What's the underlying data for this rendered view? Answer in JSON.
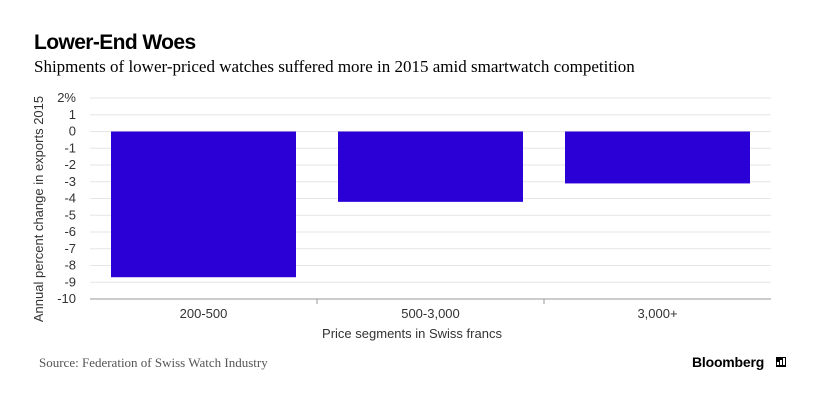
{
  "header": {
    "title": "Lower-End Woes",
    "subtitle": "Shipments of lower-priced watches suffered more in 2015 amid smartwatch competition"
  },
  "footer": {
    "source": "Source: Federation of Swiss Watch Industry",
    "brand": "Bloomberg",
    "brand_icon": "bar-chart-icon"
  },
  "colors": {
    "bar": "#2a00d6",
    "grid": "#e6e6e6",
    "axis": "#999999",
    "text": "#333333"
  },
  "chart_data": {
    "type": "bar",
    "title": "Lower-End Woes",
    "subtitle": "Shipments of lower-priced watches suffered more in 2015 amid smartwatch competition",
    "categories": [
      "200-500",
      "500-3,000",
      "3,000+"
    ],
    "values": [
      -8.7,
      -4.2,
      -3.1
    ],
    "xlabel": "Price segments in Swiss francs",
    "ylabel": "Annual percent change in exports 2015",
    "ylim": [
      -10,
      2
    ],
    "yticks": [
      2,
      1,
      0,
      -1,
      -2,
      -3,
      -4,
      -5,
      -6,
      -7,
      -8,
      -9,
      -10
    ],
    "ytick_labels": [
      "2%",
      "1",
      "0",
      "-1",
      "-2",
      "-3",
      "-4",
      "-5",
      "-6",
      "-7",
      "-8",
      "-9",
      "-10"
    ],
    "grid": true,
    "legend": "none"
  }
}
